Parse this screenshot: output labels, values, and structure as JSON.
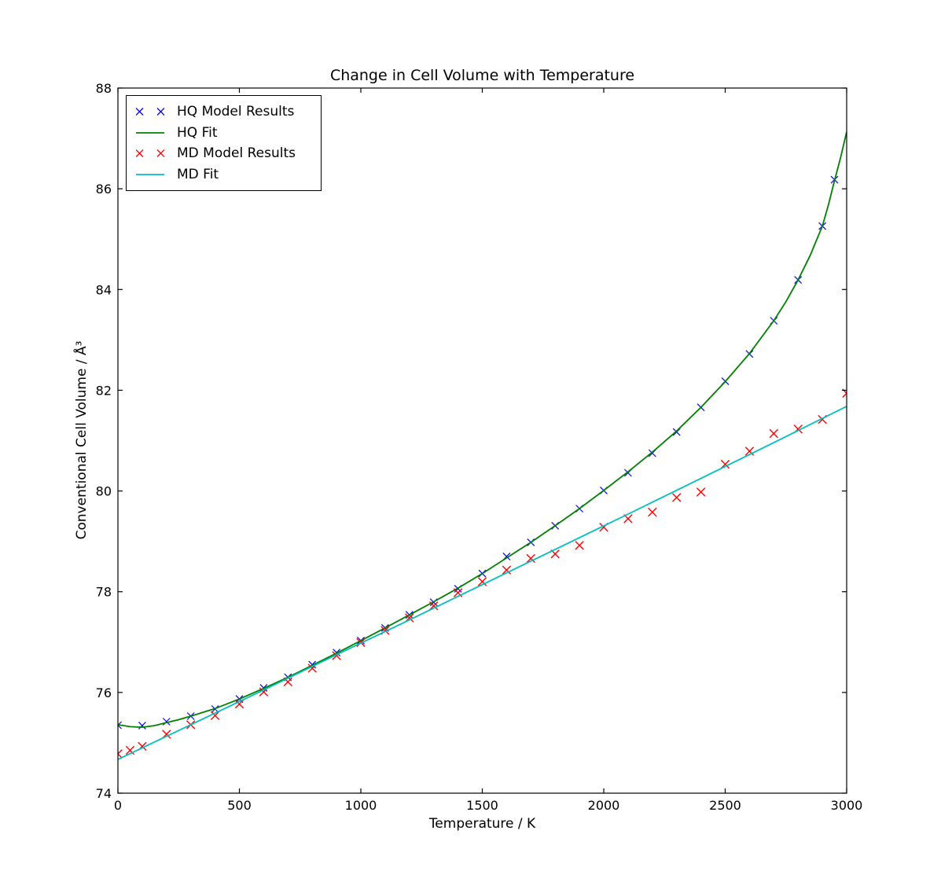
{
  "chart_data": {
    "type": "scatter",
    "title": "Change in Cell Volume with Temperature",
    "xlabel": "Temperature / K",
    "ylabel": "Conventional Cell Volume / Å³",
    "xlim": [
      0,
      3000
    ],
    "ylim": [
      74,
      88
    ],
    "x_ticks": [
      0,
      500,
      1000,
      1500,
      2000,
      2500,
      3000
    ],
    "y_ticks": [
      74,
      76,
      78,
      80,
      82,
      84,
      86,
      88
    ],
    "grid": false,
    "legend_position": "upper left",
    "background_color": "#ffffff",
    "axis_color": "#000000",
    "series": [
      {
        "name": "HQ Model Results",
        "style": "x-marker",
        "color": "#0000ff",
        "x": [
          0,
          100,
          200,
          300,
          400,
          500,
          600,
          700,
          800,
          900,
          1000,
          1100,
          1200,
          1300,
          1400,
          1500,
          1600,
          1700,
          1800,
          1900,
          2000,
          2100,
          2200,
          2300,
          2400,
          2500,
          2600,
          2700,
          2800,
          2900,
          2950
        ],
        "y": [
          75.35,
          75.34,
          75.42,
          75.53,
          75.67,
          75.87,
          76.09,
          76.3,
          76.55,
          76.79,
          77.03,
          77.28,
          77.54,
          77.79,
          78.06,
          78.36,
          78.7,
          78.98,
          79.31,
          79.65,
          80.01,
          80.36,
          80.75,
          81.17,
          81.66,
          82.18,
          82.72,
          83.38,
          84.19,
          85.26,
          86.18
        ]
      },
      {
        "name": "HQ Fit",
        "style": "line",
        "color": "#008000",
        "x": [
          0,
          50,
          100,
          150,
          200,
          250,
          300,
          400,
          500,
          600,
          700,
          800,
          900,
          1000,
          1100,
          1200,
          1300,
          1400,
          1500,
          1600,
          1700,
          1800,
          1900,
          2000,
          2100,
          2200,
          2300,
          2400,
          2500,
          2600,
          2700,
          2750,
          2800,
          2850,
          2900,
          2925,
          2950,
          2975,
          3000
        ],
        "y": [
          75.36,
          75.32,
          75.31,
          75.34,
          75.4,
          75.46,
          75.53,
          75.68,
          75.87,
          76.08,
          76.3,
          76.54,
          76.78,
          77.03,
          77.28,
          77.54,
          77.8,
          78.07,
          78.36,
          78.67,
          78.98,
          79.31,
          79.65,
          80.01,
          80.38,
          80.77,
          81.19,
          81.66,
          82.17,
          82.73,
          83.38,
          83.76,
          84.19,
          84.68,
          85.26,
          85.68,
          86.16,
          86.62,
          87.13
        ]
      },
      {
        "name": "MD Model Results",
        "style": "x-marker",
        "color": "#ff0000",
        "x": [
          0,
          50,
          100,
          200,
          300,
          400,
          500,
          600,
          700,
          800,
          900,
          1000,
          1100,
          1200,
          1300,
          1400,
          1500,
          1600,
          1700,
          1800,
          1900,
          2000,
          2100,
          2200,
          2300,
          2400,
          2500,
          2600,
          2700,
          2800,
          2900,
          3000
        ],
        "y": [
          74.78,
          74.85,
          74.93,
          75.17,
          75.36,
          75.54,
          75.77,
          76.01,
          76.21,
          76.48,
          76.73,
          76.99,
          77.23,
          77.48,
          77.72,
          77.98,
          78.2,
          78.43,
          78.66,
          78.75,
          78.92,
          79.28,
          79.45,
          79.58,
          79.87,
          79.98,
          80.53,
          80.79,
          81.14,
          81.23,
          81.42,
          81.94
        ]
      },
      {
        "name": "MD Fit",
        "style": "line",
        "color": "#00bfbf",
        "x": [
          0,
          300,
          600,
          900,
          1200,
          1500,
          1800,
          2100,
          2400,
          2700,
          3000
        ],
        "y": [
          74.67,
          75.36,
          76.05,
          76.75,
          77.44,
          78.14,
          78.84,
          79.54,
          80.25,
          80.96,
          81.68
        ]
      }
    ]
  },
  "legend": {
    "entries": [
      {
        "label": "HQ Model Results"
      },
      {
        "label": "HQ Fit"
      },
      {
        "label": "MD Model Results"
      },
      {
        "label": "MD Fit"
      }
    ]
  }
}
